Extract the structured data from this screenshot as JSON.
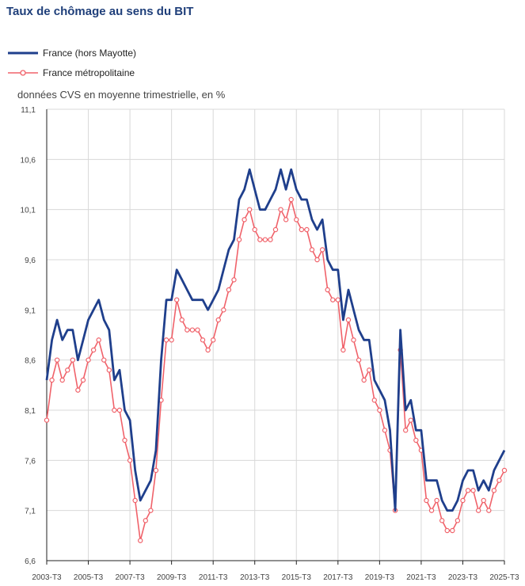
{
  "title": "Taux de chômage au sens du BIT",
  "subtitle": "données CVS en moyenne trimestrielle, en %",
  "colors": {
    "series1": "#1f3f8c",
    "series2": "#f0626a",
    "grid": "#d8d8d8",
    "axis": "#222222"
  },
  "chart_data": {
    "type": "line",
    "title": "Taux de chômage au sens du BIT",
    "ylabel": "",
    "xlabel": "",
    "ylim": [
      6.6,
      11.1
    ],
    "yticks": [
      "6,6",
      "7,1",
      "7,6",
      "8,1",
      "8,6",
      "9,1",
      "9,6",
      "10,1",
      "10,6",
      "11,1"
    ],
    "xticks": [
      "2003-T3",
      "2005-T3",
      "2007-T3",
      "2009-T3",
      "2011-T3",
      "2013-T3",
      "2015-T3",
      "2017-T3",
      "2019-T3",
      "2021-T3",
      "2023-T3",
      "2025-T3"
    ],
    "x_start": "2003-T3",
    "x_end": "2025-T3",
    "grid": true,
    "legend": "top-left",
    "series": [
      {
        "name": "France (hors Mayotte)",
        "markers": false,
        "values": [
          8.4,
          8.8,
          9.0,
          8.8,
          8.9,
          8.9,
          8.6,
          8.8,
          9.0,
          9.1,
          9.2,
          9.0,
          8.9,
          8.4,
          8.5,
          8.1,
          8.0,
          7.5,
          7.2,
          7.3,
          7.4,
          7.7,
          8.6,
          9.2,
          9.2,
          9.5,
          9.4,
          9.3,
          9.2,
          9.2,
          9.2,
          9.1,
          9.2,
          9.3,
          9.5,
          9.7,
          9.8,
          10.2,
          10.3,
          10.5,
          10.3,
          10.1,
          10.1,
          10.2,
          10.3,
          10.5,
          10.3,
          10.5,
          10.3,
          10.2,
          10.2,
          10.0,
          9.9,
          10.0,
          9.6,
          9.5,
          9.5,
          9.0,
          9.3,
          9.1,
          8.9,
          8.8,
          8.8,
          8.4,
          8.3,
          8.2,
          7.9,
          7.1,
          8.9,
          8.1,
          8.2,
          7.9,
          7.9,
          7.4,
          7.4,
          7.4,
          7.2,
          7.1,
          7.1,
          7.2,
          7.4,
          7.5,
          7.5,
          7.3,
          7.4,
          7.3,
          7.5,
          7.6,
          7.7
        ]
      },
      {
        "name": "France métropolitaine",
        "markers": true,
        "values": [
          8.0,
          8.4,
          8.6,
          8.4,
          8.5,
          8.6,
          8.3,
          8.4,
          8.6,
          8.7,
          8.8,
          8.6,
          8.5,
          8.1,
          8.1,
          7.8,
          7.6,
          7.2,
          6.8,
          7.0,
          7.1,
          7.5,
          8.2,
          8.8,
          8.8,
          9.2,
          9.0,
          8.9,
          8.9,
          8.9,
          8.8,
          8.7,
          8.8,
          9.0,
          9.1,
          9.3,
          9.4,
          9.8,
          10.0,
          10.1,
          9.9,
          9.8,
          9.8,
          9.8,
          9.9,
          10.1,
          10.0,
          10.2,
          10.0,
          9.9,
          9.9,
          9.7,
          9.6,
          9.7,
          9.3,
          9.2,
          9.2,
          8.7,
          9.0,
          8.8,
          8.6,
          8.4,
          8.5,
          8.2,
          8.1,
          7.9,
          7.7,
          7.1,
          8.7,
          7.9,
          8.0,
          7.8,
          7.7,
          7.2,
          7.1,
          7.2,
          7.0,
          6.9,
          6.9,
          7.0,
          7.2,
          7.3,
          7.3,
          7.1,
          7.2,
          7.1,
          7.3,
          7.4,
          7.5
        ]
      }
    ]
  }
}
